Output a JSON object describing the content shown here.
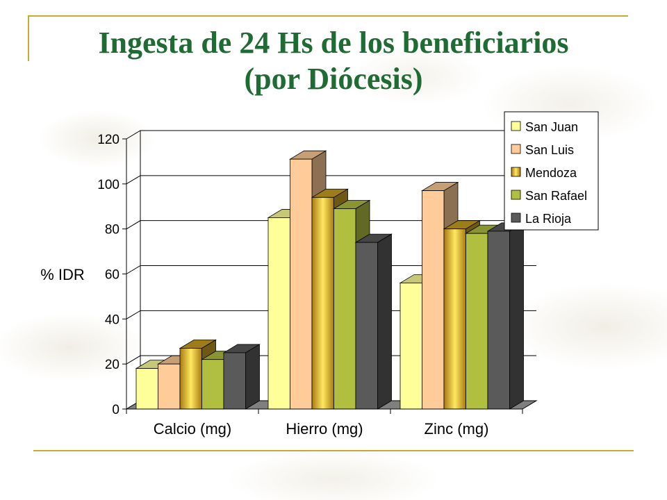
{
  "slide": {
    "title_line1": "Ingesta de 24 Hs de los beneficiarios",
    "title_line2": "(por Diócesis)"
  },
  "colors": {
    "title": "#1f6b34",
    "rule": "#c8a92a"
  },
  "chart_data": {
    "type": "bar",
    "title": "",
    "xlabel": "",
    "ylabel": "% IDR",
    "ylim": [
      0,
      120
    ],
    "yticks": [
      0,
      20,
      40,
      60,
      80,
      100,
      120
    ],
    "grid": true,
    "legend_position": "top-right",
    "categories": [
      "Calcio (mg)",
      "Hierro (mg)",
      "Zinc (mg)"
    ],
    "series": [
      {
        "name": "San Juan",
        "values": [
          18,
          85,
          56
        ],
        "color": "#ffff99"
      },
      {
        "name": "San Luis",
        "values": [
          20,
          111,
          97
        ],
        "color": "#ffcc99"
      },
      {
        "name": "Mendoza",
        "values": [
          27,
          94,
          80
        ],
        "color": "#c9a020"
      },
      {
        "name": "San Rafael",
        "values": [
          22,
          89,
          78
        ],
        "color": "#b0bf40"
      },
      {
        "name": "La Rioja",
        "values": [
          25,
          74,
          79
        ],
        "color": "#5a5a5a"
      }
    ]
  }
}
